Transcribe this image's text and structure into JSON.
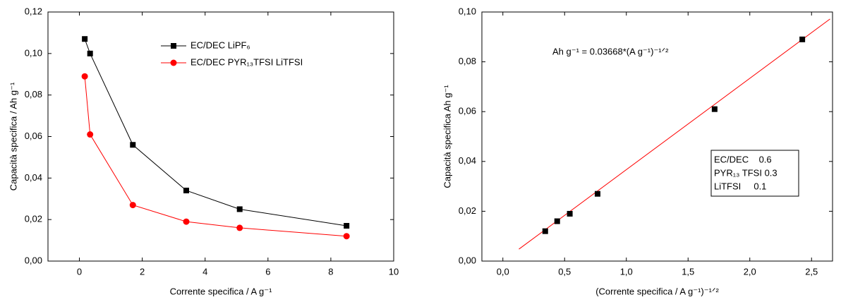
{
  "chart_data": [
    {
      "type": "line",
      "x_label": "Corrente specifica / A g⁻¹",
      "y_label": "Capacità specifica / Ah g⁻¹",
      "x": [
        0.17,
        0.34,
        1.7,
        3.4,
        5.1,
        8.5
      ],
      "series": [
        {
          "name": "EC/DEC LiPF₆",
          "color": "#000000",
          "marker": "square",
          "values": [
            0.107,
            0.1,
            0.056,
            0.034,
            0.025,
            0.017
          ]
        },
        {
          "name": "EC/DEC PYR₁₃TFSI LiTFSI",
          "color": "#ff0000",
          "marker": "circle",
          "values": [
            0.089,
            0.061,
            0.027,
            0.019,
            0.016,
            0.012
          ]
        }
      ],
      "xlim": [
        -1,
        10
      ],
      "xticks": [
        0,
        2,
        4,
        6,
        8,
        10
      ],
      "ylim": [
        0,
        0.12
      ],
      "yticks": [
        {
          "value": 0,
          "label": "0,00"
        },
        {
          "value": 0.02,
          "label": "0,02"
        },
        {
          "value": 0.04,
          "label": "0,04"
        },
        {
          "value": 0.06,
          "label": "0,06"
        },
        {
          "value": 0.08,
          "label": "0,08"
        },
        {
          "value": 0.1,
          "label": "0,10"
        },
        {
          "value": 0.12,
          "label": "0,12"
        }
      ],
      "legend": "upper center",
      "grid": false
    },
    {
      "type": "scatter",
      "x_label": "(Corrente specifica / A g⁻¹)⁻¹ᐟ²",
      "y_label": "Capacità specifica Ah g⁻¹",
      "annotation": "Ah g⁻¹ = 0.03668*(A g⁻¹)⁻¹ᐟ²",
      "info_box": [
        "EC/DEC    0.6",
        "PYR₁₃ TFSI 0.3",
        "LiTFSI     0.1"
      ],
      "x": [
        0.343,
        0.44,
        0.542,
        0.767,
        1.715,
        2.425
      ],
      "series": [
        {
          "color": "#000000",
          "marker": "square",
          "values": [
            0.012,
            0.016,
            0.019,
            0.027,
            0.061,
            0.089
          ]
        }
      ],
      "fit": {
        "color": "#ff0000",
        "x": [
          0.13,
          2.65
        ],
        "values": [
          0.0048,
          0.0972
        ]
      },
      "xlim": [
        -0.17,
        2.67
      ],
      "xticks": [
        {
          "value": 0,
          "label": "0,0"
        },
        {
          "value": 0.5,
          "label": "0,5"
        },
        {
          "value": 1,
          "label": "1,0"
        },
        {
          "value": 1.5,
          "label": "1,5"
        },
        {
          "value": 2,
          "label": "2,0"
        },
        {
          "value": 2.5,
          "label": "2,5"
        }
      ],
      "ylim": [
        0,
        0.1
      ],
      "yticks": [
        {
          "value": 0,
          "label": "0,00"
        },
        {
          "value": 0.02,
          "label": "0,02"
        },
        {
          "value": 0.04,
          "label": "0,04"
        },
        {
          "value": 0.06,
          "label": "0,06"
        },
        {
          "value": 0.08,
          "label": "0,08"
        },
        {
          "value": 0.1,
          "label": "0,10"
        }
      ],
      "grid": false
    }
  ]
}
